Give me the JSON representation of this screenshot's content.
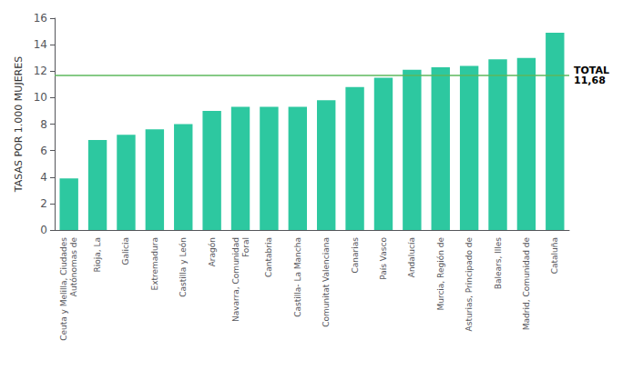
{
  "chart_data": {
    "type": "bar",
    "categories": [
      "Ceuta y Melilla, Ciudades\nAutónomas de",
      "Rioja, La",
      "Galicia",
      "Extremadura",
      "Castilla y León",
      "Aragón",
      "Navarra, Comunidad\nForal",
      "Cantabria",
      "Castilla- La Mancha",
      "Comunitat Valenciana",
      "Canarias",
      "País Vasco",
      "Andalucía",
      "Murcia, Región de",
      "Asturias, Principado de",
      "Balears, Illes",
      "Madrid, Comunidad de",
      "Cataluña"
    ],
    "values": [
      3.9,
      6.8,
      7.2,
      7.6,
      8.0,
      9.0,
      9.3,
      9.3,
      9.3,
      9.8,
      10.8,
      11.5,
      12.1,
      12.3,
      12.4,
      12.9,
      13.0,
      14.9
    ],
    "color": "#2DC8A0",
    "ylabel": "TASAS POR 1.000 MUJERES",
    "ylim": [
      0,
      16
    ],
    "yticks": [
      0,
      2,
      4,
      6,
      8,
      10,
      12,
      14,
      16
    ],
    "grid": false,
    "reference_line": {
      "value": 11.68,
      "color": "#5CB85C",
      "labels": [
        "TOTAL",
        "11,68"
      ]
    }
  }
}
